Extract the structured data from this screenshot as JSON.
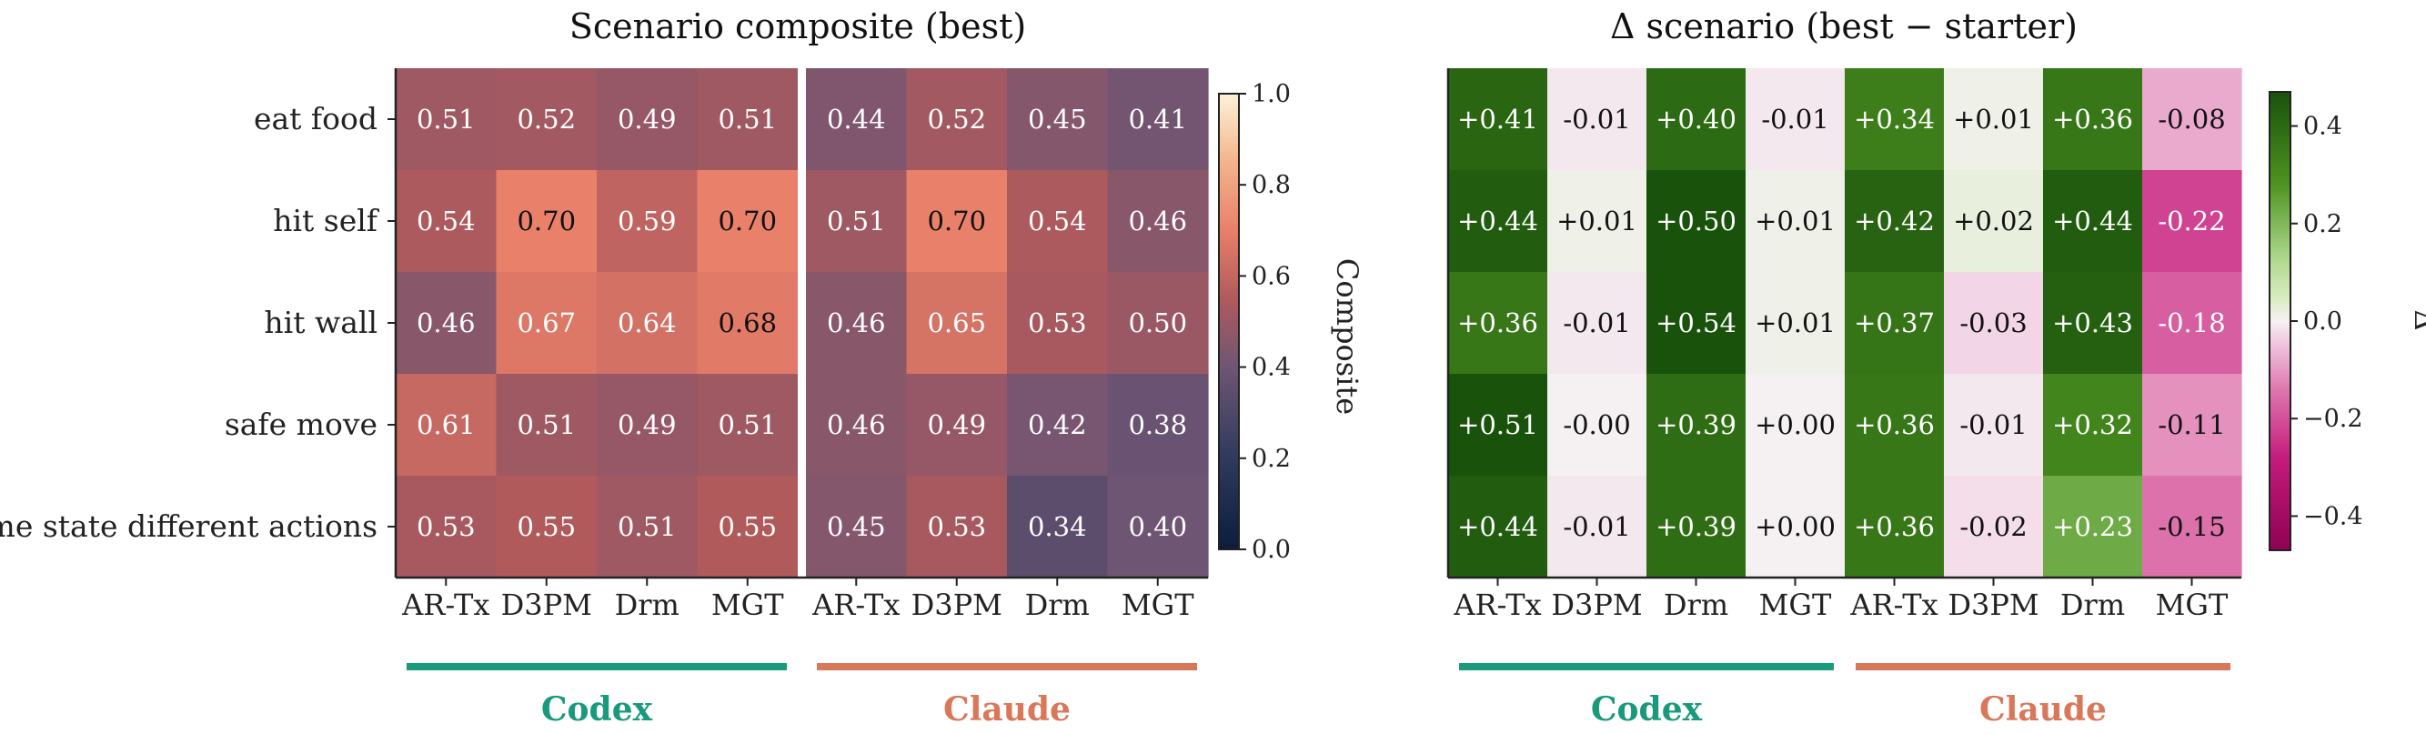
{
  "chart_data": [
    {
      "type": "heatmap",
      "title": "Scenario composite (best)",
      "rows": [
        "eat food",
        "hit self",
        "hit wall",
        "safe move",
        "same state different actions"
      ],
      "columns": [
        "AR-Tx",
        "D3PM",
        "Drm",
        "MGT",
        "AR-Tx",
        "D3PM",
        "Drm",
        "MGT"
      ],
      "values": [
        [
          0.51,
          0.52,
          0.49,
          0.51,
          0.44,
          0.52,
          0.45,
          0.41
        ],
        [
          0.54,
          0.7,
          0.59,
          0.7,
          0.51,
          0.7,
          0.54,
          0.46
        ],
        [
          0.46,
          0.67,
          0.64,
          0.68,
          0.46,
          0.65,
          0.53,
          0.5
        ],
        [
          0.61,
          0.51,
          0.49,
          0.51,
          0.46,
          0.49,
          0.42,
          0.38
        ],
        [
          0.53,
          0.55,
          0.51,
          0.55,
          0.45,
          0.53,
          0.34,
          0.4
        ]
      ],
      "labels": [
        [
          "0.51",
          "0.52",
          "0.49",
          "0.51",
          "0.44",
          "0.52",
          "0.45",
          "0.41"
        ],
        [
          "0.54",
          "0.70",
          "0.59",
          "0.70",
          "0.51",
          "0.70",
          "0.54",
          "0.46"
        ],
        [
          "0.46",
          "0.67",
          "0.64",
          "0.68",
          "0.46",
          "0.65",
          "0.53",
          "0.50"
        ],
        [
          "0.61",
          "0.51",
          "0.49",
          "0.51",
          "0.46",
          "0.49",
          "0.42",
          "0.38"
        ],
        [
          "0.53",
          "0.55",
          "0.51",
          "0.55",
          "0.45",
          "0.53",
          "0.34",
          "0.40"
        ]
      ],
      "colorbar": {
        "label": "Composite",
        "range": [
          0,
          1.0
        ],
        "ticks": [
          "0.0",
          "0.2",
          "0.4",
          "0.6",
          "0.8",
          "1.0"
        ],
        "colormap": "navy-to-salmon-to-cream"
      },
      "groups": [
        {
          "name": "Codex",
          "color": "#1a9a7c"
        },
        {
          "name": "Claude",
          "color": "#d9775a"
        }
      ]
    },
    {
      "type": "heatmap",
      "title": "Δ scenario (best − starter)",
      "rows": [
        "eat food",
        "hit self",
        "hit wall",
        "safe move",
        "same state different actions"
      ],
      "columns": [
        "AR-Tx",
        "D3PM",
        "Drm",
        "MGT",
        "AR-Tx",
        "D3PM",
        "Drm",
        "MGT"
      ],
      "values": [
        [
          0.41,
          -0.01,
          0.4,
          -0.01,
          0.34,
          0.01,
          0.36,
          -0.08
        ],
        [
          0.44,
          0.01,
          0.5,
          0.01,
          0.42,
          0.02,
          0.44,
          -0.22
        ],
        [
          0.36,
          -0.01,
          0.54,
          0.01,
          0.37,
          -0.03,
          0.43,
          -0.18
        ],
        [
          0.51,
          -0.0,
          0.39,
          0.0,
          0.36,
          -0.01,
          0.32,
          -0.11
        ],
        [
          0.44,
          -0.01,
          0.39,
          0.0,
          0.36,
          -0.02,
          0.23,
          -0.15
        ]
      ],
      "labels": [
        [
          "+0.41",
          "-0.01",
          "+0.40",
          "-0.01",
          "+0.34",
          "+0.01",
          "+0.36",
          "-0.08"
        ],
        [
          "+0.44",
          "+0.01",
          "+0.50",
          "+0.01",
          "+0.42",
          "+0.02",
          "+0.44",
          "-0.22"
        ],
        [
          "+0.36",
          "-0.01",
          "+0.54",
          "+0.01",
          "+0.37",
          "-0.03",
          "+0.43",
          "-0.18"
        ],
        [
          "+0.51",
          "-0.00",
          "+0.39",
          "+0.00",
          "+0.36",
          "-0.01",
          "+0.32",
          "-0.11"
        ],
        [
          "+0.44",
          "-0.01",
          "+0.39",
          "+0.00",
          "+0.36",
          "-0.02",
          "+0.23",
          "-0.15"
        ]
      ],
      "colorbar": {
        "label": "Δ",
        "range": [
          -0.47,
          0.47
        ],
        "ticks": [
          "−0.4",
          "−0.2",
          "0.0",
          "0.2",
          "0.4"
        ],
        "colormap": "PiYG"
      },
      "groups": [
        {
          "name": "Codex",
          "color": "#1a9a7c"
        },
        {
          "name": "Claude",
          "color": "#d9775a"
        }
      ]
    }
  ]
}
